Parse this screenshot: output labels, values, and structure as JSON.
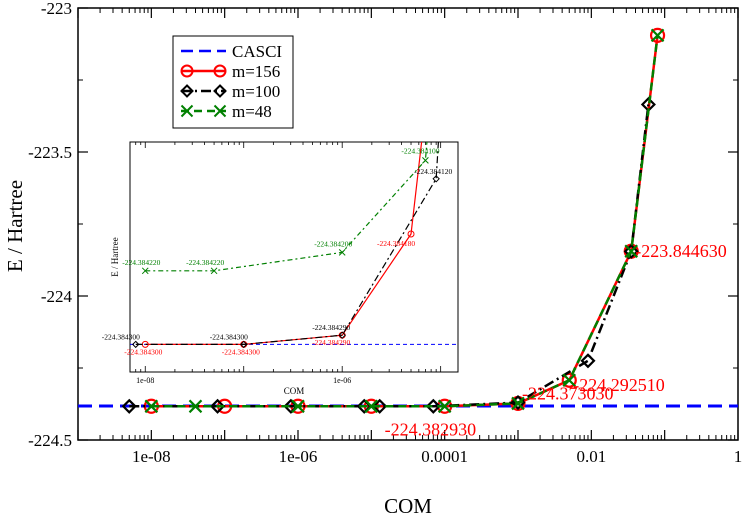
{
  "chart_data": [
    {
      "type": "line",
      "xscale": "log",
      "xlabel": "COM",
      "ylabel": "E / Hartree",
      "xlim": [
        1e-09,
        1
      ],
      "ylim": [
        -224.5,
        -223.0
      ],
      "x_ticks": [
        {
          "value": 1e-08,
          "label": "1e-08"
        },
        {
          "value": 1e-06,
          "label": "1e-06"
        },
        {
          "value": 0.0001,
          "label": "0.0001"
        },
        {
          "value": 0.01,
          "label": "0.01"
        },
        {
          "value": 1,
          "label": "1"
        }
      ],
      "y_ticks": [
        {
          "value": -223.0,
          "label": "-223"
        },
        {
          "value": -223.5,
          "label": "-223.5"
        },
        {
          "value": -224.0,
          "label": "-224"
        },
        {
          "value": -224.5,
          "label": "-224.5"
        }
      ],
      "reference": {
        "name": "CASCI",
        "value": -224.382,
        "color": "#0000ff"
      },
      "series": [
        {
          "name": "m=156",
          "color": "#ff0000",
          "marker": "circle",
          "x": [
            1e-08,
            1e-07,
            1e-06,
            1e-05,
            0.0001,
            0.001,
            0.005,
            0.035,
            0.08
          ],
          "y": [
            -224.3829,
            -224.3829,
            -224.3829,
            -224.3829,
            -224.3829,
            -224.373,
            -224.2925,
            -223.8446,
            -223.095
          ]
        },
        {
          "name": "m=100",
          "color": "#000000",
          "marker": "diamond",
          "x": [
            5e-09,
            8e-08,
            8e-07,
            8e-06,
            1.3e-05,
            7e-05,
            0.001,
            0.009,
            0.035,
            0.06
          ],
          "y": [
            -224.383,
            -224.383,
            -224.383,
            -224.383,
            -224.383,
            -224.383,
            -224.37,
            -224.225,
            -223.845,
            -223.335
          ]
        },
        {
          "name": "m=48",
          "color": "#008000",
          "marker": "x",
          "x": [
            1e-08,
            4e-08,
            1e-06,
            1e-05,
            0.0001,
            0.001,
            0.005,
            0.035,
            0.08
          ],
          "y": [
            -224.383,
            -224.383,
            -224.383,
            -224.383,
            -224.383,
            -224.373,
            -224.2925,
            -223.8446,
            -223.095
          ]
        }
      ],
      "annotations": [
        {
          "text": "-223.844630",
          "x": 0.035,
          "y": -223.8446,
          "color": "#ff0000"
        },
        {
          "text": "-224.292510",
          "x": 0.005,
          "y": -224.2925,
          "color": "#ff0000"
        },
        {
          "text": "-224.373030",
          "x": 0.001,
          "y": -224.373,
          "color": "#ff0000"
        },
        {
          "text": "-224.382930",
          "x": 0.0001,
          "y": -224.3829,
          "color": "#ff0000"
        }
      ],
      "legend": {
        "placement": "top-left"
      }
    },
    {
      "type": "line",
      "role": "inset",
      "xscale": "log",
      "xlabel": "COM",
      "ylabel": "E / Hartree",
      "xlim": [
        7e-09,
        1.5e-05
      ],
      "ylim": [
        -224.38433,
        -224.38408
      ],
      "x_ticks": [
        {
          "value": 1e-08,
          "label": "1e-08"
        },
        {
          "value": 1e-06,
          "label": "1e-06"
        }
      ],
      "reference": {
        "name": "CASCI",
        "value": -224.3843,
        "color": "#0000ff"
      },
      "series": [
        {
          "name": "m=156",
          "color": "#ff0000",
          "marker": "circle",
          "x": [
            1e-08,
            1e-07,
            1e-06,
            5e-06,
            1e-05
          ],
          "y": [
            -224.3843,
            -224.3843,
            -224.38429,
            -224.38418,
            -224.3839
          ]
        },
        {
          "name": "m=100",
          "color": "#000000",
          "marker": "diamond",
          "x": [
            8e-09,
            1e-07,
            1e-06,
            9e-06,
            1.2e-05
          ],
          "y": [
            -224.3843,
            -224.3843,
            -224.38429,
            -224.38412,
            -224.3839
          ]
        },
        {
          "name": "m=48",
          "color": "#008000",
          "marker": "x",
          "x": [
            1e-08,
            5e-08,
            1e-06,
            7e-06,
            1e-05
          ],
          "y": [
            -224.38422,
            -224.38422,
            -224.3842,
            -224.3841,
            -224.3839
          ]
        }
      ],
      "annotations": [
        {
          "text": "-224.384220",
          "x": 1e-08,
          "y": -224.38422,
          "color": "#008000"
        },
        {
          "text": "-224.384220",
          "x": 5e-08,
          "y": -224.38422,
          "color": "#008000"
        },
        {
          "text": "-224.384200",
          "x": 1e-06,
          "y": -224.3842,
          "color": "#008000"
        },
        {
          "text": "-224.384100",
          "x": 7e-06,
          "y": -224.3841,
          "color": "#008000"
        },
        {
          "text": "-224.384300",
          "x": 8e-09,
          "y": -224.3843,
          "color": "#000000"
        },
        {
          "text": "-224.384300",
          "x": 1e-07,
          "y": -224.3843,
          "color": "#000000"
        },
        {
          "text": "-224.384290",
          "x": 1e-06,
          "y": -224.38429,
          "color": "#000000"
        },
        {
          "text": "-224.384120",
          "x": 9e-06,
          "y": -224.38412,
          "color": "#000000"
        },
        {
          "text": "-224.384300",
          "x": 1e-08,
          "y": -224.3843,
          "color": "#ff0000"
        },
        {
          "text": "-224.384300",
          "x": 1e-07,
          "y": -224.3843,
          "color": "#ff0000"
        },
        {
          "text": "-224.384290",
          "x": 1e-06,
          "y": -224.38429,
          "color": "#ff0000"
        },
        {
          "text": "-224.384180",
          "x": 5e-06,
          "y": -224.38418,
          "color": "#ff0000"
        }
      ]
    }
  ]
}
